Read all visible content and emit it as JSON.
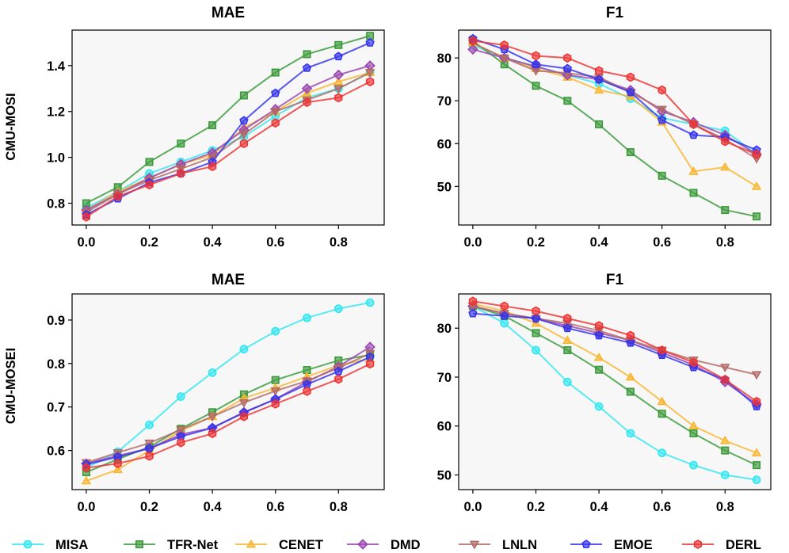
{
  "row_labels": [
    "CMU-MOSI",
    "CMU-MOSEI"
  ],
  "series_styles": [
    {
      "name": "MISA",
      "color": "#33E6F0",
      "marker": "circle"
    },
    {
      "name": "TFR-Net",
      "color": "#3A9A3A",
      "marker": "square"
    },
    {
      "name": "CENET",
      "color": "#F8B630",
      "marker": "triangle-up"
    },
    {
      "name": "DMD",
      "color": "#9B45B0",
      "marker": "diamond"
    },
    {
      "name": "LNLN",
      "color": "#B26A66",
      "marker": "triangle-down"
    },
    {
      "name": "EMOE",
      "color": "#3333EE",
      "marker": "pentagon"
    },
    {
      "name": "DERL",
      "color": "#EE3333",
      "marker": "hexagon"
    }
  ],
  "legend": [
    "MISA",
    "TFR-Net",
    "CENET",
    "DMD",
    "LNLN",
    "EMOE",
    "DERL"
  ],
  "chart_data": [
    {
      "type": "line",
      "title": "MAE",
      "row_label": "CMU-MOSI",
      "x": [
        0.0,
        0.1,
        0.2,
        0.3,
        0.4,
        0.5,
        0.6,
        0.7,
        0.8,
        0.9
      ],
      "xlim": [
        -0.045,
        0.945
      ],
      "ylim": [
        0.705,
        1.555
      ],
      "xticks": [
        "0.0",
        "0.2",
        "0.4",
        "0.6",
        "0.8"
      ],
      "yticks": [
        "0.8",
        "1.0",
        "1.2",
        "1.4"
      ],
      "grid": false,
      "series": [
        {
          "name": "MISA",
          "values": [
            0.78,
            0.85,
            0.93,
            0.98,
            1.03,
            1.09,
            1.18,
            1.26,
            1.3,
            1.37
          ]
        },
        {
          "name": "TFR-Net",
          "values": [
            0.8,
            0.87,
            0.98,
            1.06,
            1.14,
            1.27,
            1.37,
            1.45,
            1.49,
            1.53
          ]
        },
        {
          "name": "CENET",
          "values": [
            0.77,
            0.85,
            0.91,
            0.97,
            1.01,
            1.13,
            1.2,
            1.28,
            1.33,
            1.37
          ]
        },
        {
          "name": "DMD",
          "values": [
            0.77,
            0.84,
            0.91,
            0.97,
            1.02,
            1.12,
            1.21,
            1.3,
            1.36,
            1.4
          ]
        },
        {
          "name": "LNLN",
          "values": [
            0.76,
            0.84,
            0.9,
            0.95,
            1.0,
            1.1,
            1.2,
            1.25,
            1.3,
            1.37
          ]
        },
        {
          "name": "EMOE",
          "values": [
            0.75,
            0.82,
            0.89,
            0.93,
            0.98,
            1.16,
            1.28,
            1.39,
            1.44,
            1.5
          ]
        },
        {
          "name": "DERL",
          "values": [
            0.74,
            0.83,
            0.88,
            0.93,
            0.96,
            1.06,
            1.15,
            1.24,
            1.26,
            1.33
          ]
        }
      ]
    },
    {
      "type": "line",
      "title": "F1",
      "row_label": "CMU-MOSI",
      "x": [
        0.0,
        0.1,
        0.2,
        0.3,
        0.4,
        0.5,
        0.6,
        0.7,
        0.8,
        0.9
      ],
      "xlim": [
        -0.045,
        0.945
      ],
      "ylim": [
        41.0,
        86.5
      ],
      "xticks": [
        "0.0",
        "0.2",
        "0.4",
        "0.6",
        "0.8"
      ],
      "yticks": [
        "50",
        "60",
        "70",
        "80"
      ],
      "grid": false,
      "series": [
        {
          "name": "MISA",
          "values": [
            83.0,
            80.0,
            78.0,
            76.0,
            74.0,
            70.5,
            66.0,
            64.5,
            63.0,
            57.5
          ]
        },
        {
          "name": "TFR-Net",
          "values": [
            84.0,
            78.5,
            73.5,
            70.0,
            64.5,
            58.0,
            52.5,
            48.5,
            44.5,
            43.0
          ]
        },
        {
          "name": "CENET",
          "values": [
            83.5,
            80.0,
            77.5,
            75.5,
            72.5,
            71.0,
            65.0,
            53.5,
            54.5,
            50.0
          ]
        },
        {
          "name": "DMD",
          "values": [
            82.0,
            80.0,
            78.0,
            76.0,
            75.0,
            72.5,
            67.5,
            65.0,
            62.0,
            57.5
          ]
        },
        {
          "name": "LNLN",
          "values": [
            83.5,
            80.0,
            77.0,
            76.5,
            75.5,
            72.0,
            68.0,
            64.5,
            61.0,
            56.5
          ]
        },
        {
          "name": "EMOE",
          "values": [
            84.5,
            82.0,
            78.5,
            77.5,
            75.0,
            72.0,
            65.5,
            62.0,
            61.5,
            58.5
          ]
        },
        {
          "name": "DERL",
          "values": [
            84.0,
            83.0,
            80.5,
            80.0,
            77.0,
            75.5,
            72.5,
            64.5,
            60.5,
            57.5
          ]
        }
      ]
    },
    {
      "type": "line",
      "title": "MAE",
      "row_label": "CMU-MOSEI",
      "x": [
        0.0,
        0.1,
        0.2,
        0.3,
        0.4,
        0.5,
        0.6,
        0.7,
        0.8,
        0.9
      ],
      "xlim": [
        -0.045,
        0.945
      ],
      "ylim": [
        0.51,
        0.96
      ],
      "xticks": [
        "0.0",
        "0.2",
        "0.4",
        "0.6",
        "0.8"
      ],
      "yticks": [
        "0.6",
        "0.7",
        "0.8",
        "0.9"
      ],
      "grid": false,
      "series": [
        {
          "name": "MISA",
          "values": [
            0.56,
            0.597,
            0.659,
            0.724,
            0.779,
            0.833,
            0.874,
            0.905,
            0.926,
            0.94
          ]
        },
        {
          "name": "TFR-Net",
          "values": [
            0.55,
            0.58,
            0.608,
            0.65,
            0.688,
            0.729,
            0.762,
            0.785,
            0.807,
            0.82
          ]
        },
        {
          "name": "CENET",
          "values": [
            0.53,
            0.556,
            0.6,
            0.645,
            0.678,
            0.72,
            0.744,
            0.77,
            0.796,
            0.811
          ]
        },
        {
          "name": "DMD",
          "values": [
            0.57,
            0.588,
            0.605,
            0.637,
            0.652,
            0.688,
            0.718,
            0.758,
            0.793,
            0.838
          ]
        },
        {
          "name": "LNLN",
          "values": [
            0.572,
            0.595,
            0.617,
            0.648,
            0.678,
            0.71,
            0.737,
            0.76,
            0.79,
            0.823
          ]
        },
        {
          "name": "EMOE",
          "values": [
            0.568,
            0.585,
            0.605,
            0.632,
            0.652,
            0.687,
            0.718,
            0.752,
            0.782,
            0.815
          ]
        },
        {
          "name": "DERL",
          "values": [
            0.56,
            0.57,
            0.587,
            0.618,
            0.639,
            0.678,
            0.707,
            0.736,
            0.764,
            0.799
          ]
        }
      ]
    },
    {
      "type": "line",
      "title": "F1",
      "row_label": "CMU-MOSEI",
      "x": [
        0.0,
        0.1,
        0.2,
        0.3,
        0.4,
        0.5,
        0.6,
        0.7,
        0.8,
        0.9
      ],
      "xlim": [
        -0.045,
        0.945
      ],
      "ylim": [
        47.0,
        87.0
      ],
      "xticks": [
        "0.0",
        "0.2",
        "0.4",
        "0.6",
        "0.8"
      ],
      "yticks": [
        "50",
        "60",
        "70",
        "80"
      ],
      "grid": false,
      "series": [
        {
          "name": "MISA",
          "values": [
            84.5,
            81.0,
            75.5,
            69.0,
            64.0,
            58.5,
            54.5,
            52.0,
            50.0,
            49.0
          ]
        },
        {
          "name": "TFR-Net",
          "values": [
            84.5,
            82.5,
            79.0,
            75.5,
            71.5,
            67.0,
            62.5,
            58.5,
            55.0,
            52.0
          ]
        },
        {
          "name": "CENET",
          "values": [
            85.0,
            83.5,
            81.0,
            77.5,
            74.0,
            70.0,
            65.0,
            60.0,
            57.0,
            54.5
          ]
        },
        {
          "name": "DMD",
          "values": [
            84.5,
            83.0,
            82.0,
            80.5,
            79.0,
            77.5,
            75.0,
            72.5,
            69.0,
            64.5
          ]
        },
        {
          "name": "LNLN",
          "values": [
            84.5,
            83.0,
            82.0,
            81.0,
            79.5,
            77.5,
            75.5,
            73.5,
            72.0,
            70.5
          ]
        },
        {
          "name": "EMOE",
          "values": [
            83.0,
            82.5,
            82.0,
            80.0,
            78.5,
            77.0,
            74.5,
            72.0,
            69.5,
            64.0
          ]
        },
        {
          "name": "DERL",
          "values": [
            85.5,
            84.5,
            83.5,
            82.0,
            80.5,
            78.5,
            75.5,
            73.0,
            69.5,
            65.0
          ]
        }
      ]
    }
  ]
}
